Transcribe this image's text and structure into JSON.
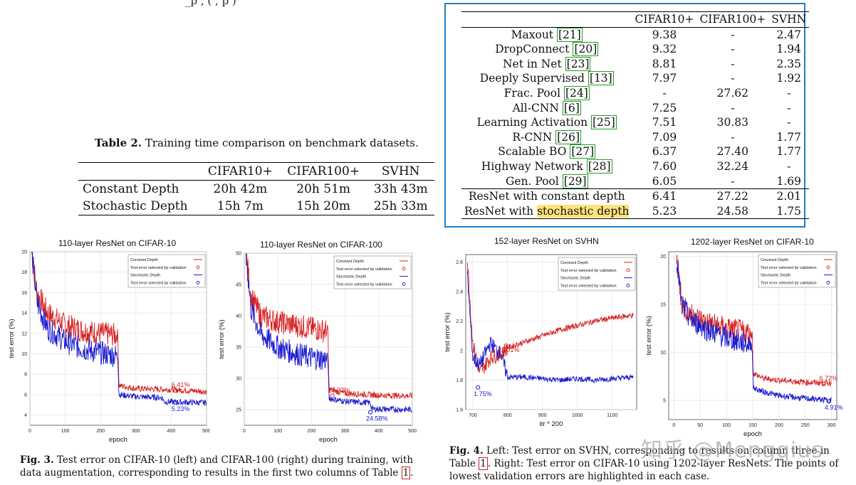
{
  "top_fragment": "_p    ,   ( , p        )",
  "table2": {
    "label": "Table 2.",
    "caption": "Training time comparison on benchmark datasets.",
    "columns": [
      "",
      "CIFAR10+",
      "CIFAR100+",
      "SVHN"
    ],
    "rows": [
      [
        "Constant Depth",
        "20h 42m",
        "20h 51m",
        "33h 43m"
      ],
      [
        "Stochastic Depth",
        "15h 7m",
        "15h 20m",
        "25h 33m"
      ]
    ]
  },
  "table1": {
    "columns": [
      "",
      "CIFAR10+",
      "CIFAR100+",
      "SVHN"
    ],
    "rows": [
      {
        "name": "Maxout",
        "ref": "21",
        "c10": "9.38",
        "c100": "-",
        "svhn": "2.47"
      },
      {
        "name": "DropConnect",
        "ref": "20",
        "c10": "9.32",
        "c100": "-",
        "svhn": "1.94"
      },
      {
        "name": "Net in Net",
        "ref": "23",
        "c10": "8.81",
        "c100": "-",
        "svhn": "2.35"
      },
      {
        "name": "Deeply Supervised",
        "ref": "13",
        "c10": "7.97",
        "c100": "-",
        "svhn": "1.92"
      },
      {
        "name": "Frac. Pool",
        "ref": "24",
        "c10": "-",
        "c100": "27.62",
        "svhn": "-"
      },
      {
        "name": "All-CNN",
        "ref": "6",
        "c10": "7.25",
        "c100": "-",
        "svhn": "-"
      },
      {
        "name": "Learning Activation",
        "ref": "25",
        "c10": "7.51",
        "c100": "30.83",
        "svhn": "-"
      },
      {
        "name": "R-CNN",
        "ref": "26",
        "c10": "7.09",
        "c100": "-",
        "svhn": "1.77"
      },
      {
        "name": "Scalable BO",
        "ref": "27",
        "c10": "6.37",
        "c100": "27.40",
        "svhn": "1.77"
      },
      {
        "name": "Highway Network",
        "ref": "28",
        "c10": "7.60",
        "c100": "32.24",
        "svhn": "-"
      },
      {
        "name": "Gen. Pool",
        "ref": "29",
        "c10": "6.05",
        "c100": "-",
        "svhn": "1.69"
      }
    ],
    "resnet_rows": [
      {
        "name": "ResNet with constant depth",
        "c10": "6.41",
        "c100": "27.22",
        "svhn": "2.01"
      },
      {
        "name_prefix": "ResNet with ",
        "name_highlight": "stochastic depth",
        "c10": "5.23",
        "c100": "24.58",
        "svhn": "1.75"
      }
    ],
    "highlight_color": "#ffe27a",
    "box_color": "#1e7fc3"
  },
  "legend": {
    "constant": "Constant Depth",
    "constant_sel": "Test error selected by validation",
    "stochastic": "Stochastic Depth",
    "stochastic_sel": "Test error selected by validation"
  },
  "colors": {
    "constant": "#d62020",
    "stochastic": "#1a1ad0"
  },
  "chart_data": [
    {
      "type": "line",
      "title": "110-layer ResNet on CIFAR-10",
      "xlabel": "epoch",
      "ylabel": "test error (%)",
      "xlim": [
        0,
        500
      ],
      "ylim": [
        3,
        20
      ],
      "xticks": [
        0,
        100,
        200,
        300,
        400,
        500
      ],
      "yticks": [
        4,
        6,
        8,
        10,
        12,
        14,
        16,
        18,
        20
      ],
      "drop_at": 250,
      "series": [
        {
          "name": "Constant Depth",
          "x": [
            5,
            20,
            50,
            100,
            150,
            200,
            249,
            252,
            300,
            400,
            500
          ],
          "values": [
            20,
            16,
            14,
            12.8,
            12.3,
            12,
            11.8,
            6.9,
            6.6,
            6.5,
            6.3
          ]
        },
        {
          "name": "Stochastic Depth",
          "x": [
            5,
            20,
            50,
            100,
            150,
            200,
            249,
            252,
            300,
            375,
            380,
            500
          ],
          "values": [
            20,
            15,
            12.5,
            11.2,
            10.5,
            10.1,
            9.8,
            6.0,
            5.8,
            5.7,
            5.3,
            5.2
          ]
        }
      ],
      "annotations": [
        {
          "text": "6.41%",
          "x": 413,
          "y": 6.41,
          "series": "Constant Depth"
        },
        {
          "text": "5.23%",
          "x": 413,
          "y": 5.23,
          "series": "Stochastic Depth"
        }
      ]
    },
    {
      "type": "line",
      "title": "110-layer ResNet on CIFAR-100",
      "xlabel": "epoch",
      "ylabel": "test error (%)",
      "xlim": [
        0,
        500
      ],
      "ylim": [
        22.5,
        50
      ],
      "xticks": [
        0,
        100,
        200,
        300,
        400,
        500
      ],
      "yticks": [
        25,
        30,
        35,
        40,
        45,
        50
      ],
      "drop_at": 250,
      "series": [
        {
          "name": "Constant Depth",
          "x": [
            5,
            20,
            50,
            100,
            150,
            200,
            249,
            252,
            300,
            400,
            500
          ],
          "values": [
            50,
            43,
            40,
            39,
            38.5,
            38,
            37.5,
            28.2,
            27.6,
            27.3,
            27.2
          ]
        },
        {
          "name": "Stochastic Depth",
          "x": [
            5,
            20,
            50,
            100,
            150,
            200,
            249,
            252,
            300,
            375,
            380,
            500
          ],
          "values": [
            50,
            41,
            37,
            35,
            34,
            33.3,
            33,
            26.8,
            26.3,
            26.1,
            25.1,
            25.0
          ]
        }
      ],
      "annotations": [
        {
          "text": "27.22%",
          "x": 262,
          "y": 27.22,
          "series": "Constant Depth"
        },
        {
          "text": "24.58%",
          "x": 375,
          "y": 24.58,
          "series": "Stochastic Depth"
        }
      ]
    },
    {
      "type": "line",
      "title": "152-layer ResNet on SVHN",
      "xlabel": "itr * 200",
      "ylabel": "test error (%)",
      "xlim": [
        680,
        1170
      ],
      "ylim": [
        1.6,
        2.65
      ],
      "xticks": [
        700,
        800,
        900,
        1000,
        1100
      ],
      "yticks": [
        1.6,
        1.8,
        2.0,
        2.2,
        2.4,
        2.6
      ],
      "drop_at": null,
      "series": [
        {
          "name": "Constant Depth",
          "x": [
            685,
            700,
            720,
            750,
            780,
            800,
            850,
            900,
            950,
            1000,
            1050,
            1100,
            1160
          ],
          "values": [
            2.6,
            2.05,
            1.85,
            1.95,
            1.98,
            2.02,
            2.06,
            2.1,
            2.14,
            2.17,
            2.2,
            2.22,
            2.24
          ]
        },
        {
          "name": "Stochastic Depth",
          "x": [
            685,
            700,
            720,
            750,
            780,
            800,
            850,
            900,
            950,
            1000,
            1050,
            1100,
            1160
          ],
          "values": [
            2.5,
            1.95,
            1.9,
            2.05,
            1.98,
            1.82,
            1.82,
            1.81,
            1.8,
            1.81,
            1.8,
            1.81,
            1.82
          ]
        }
      ],
      "annotations": [
        {
          "text": "2.01%",
          "x": 790,
          "y": 2.01,
          "series": "Constant Depth"
        },
        {
          "text": "1.75%",
          "x": 715,
          "y": 1.75,
          "series": "Stochastic Depth"
        }
      ]
    },
    {
      "type": "line",
      "title": "1202-layer ResNet on CIFAR-10",
      "xlabel": "epoch",
      "ylabel": "test error (%)",
      "xlim": [
        -10,
        310
      ],
      "ylim": [
        3,
        20.5
      ],
      "xticks": [
        0,
        50,
        100,
        150,
        200,
        250,
        300
      ],
      "yticks": [
        5,
        10,
        15,
        20
      ],
      "drop_at": 150,
      "series": [
        {
          "name": "Constant Depth",
          "x": [
            5,
            15,
            30,
            60,
            100,
            149,
            151,
            170,
            200,
            250,
            300
          ],
          "values": [
            20,
            15,
            14,
            13.2,
            12.5,
            12,
            7.8,
            7.3,
            7.1,
            6.9,
            6.8
          ]
        },
        {
          "name": "Stochastic Depth",
          "x": [
            5,
            15,
            30,
            60,
            100,
            149,
            151,
            170,
            200,
            250,
            300
          ],
          "values": [
            20,
            15,
            13.5,
            12.5,
            11.5,
            10.8,
            6.3,
            5.9,
            5.5,
            5.2,
            5.0
          ]
        }
      ],
      "annotations": [
        {
          "text": "6.72%",
          "x": 285,
          "y": 6.72,
          "series": "Constant Depth"
        },
        {
          "text": "4.91%",
          "x": 295,
          "y": 4.91,
          "series": "Stochastic Depth"
        }
      ]
    }
  ],
  "fig3": {
    "label": "Fig. 3.",
    "text": "Test error on CIFAR-10 (left) and CIFAR-100 (right) during training, with data augmentation, corresponding to results in the first two columns of Table",
    "ref": "1",
    "end": "."
  },
  "fig4": {
    "label": "Fig. 4.",
    "text": "Left: Test error on SVHN, corresponding to results on column three in Table",
    "ref": "1",
    "text2": ". Right: Test error on CIFAR-10 using 1202-layer ResNets. The points of lowest validation errors are highlighted in each case."
  },
  "watermark": "知乎 @Mengqius"
}
